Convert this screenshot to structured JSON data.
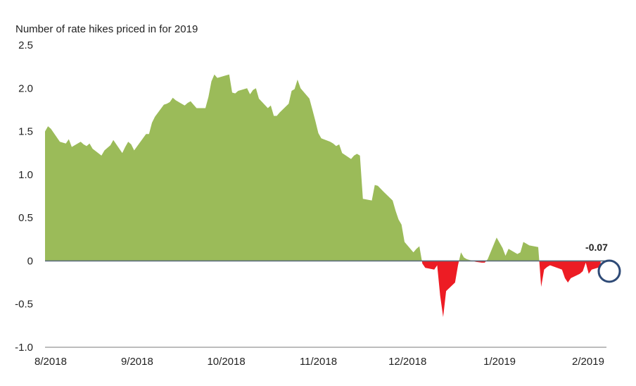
{
  "chart_data": {
    "type": "area",
    "title": "",
    "ylabel": "Number of rate hikes priced in for 2019",
    "xlabel": "",
    "ylim": [
      -1.0,
      2.5
    ],
    "y_ticks": [
      2.5,
      2.0,
      1.5,
      1.0,
      0.5,
      0,
      -0.5,
      -1.0
    ],
    "y_tick_labels": [
      "2.5",
      "2.0",
      "1.5",
      "1.0",
      "0.5",
      "0",
      "-0.5",
      "-1.0"
    ],
    "x_tick_labels": [
      "8/2018",
      "9/2018",
      "10/2018",
      "11/2018",
      "12/2018",
      "1/2019",
      "2/2019"
    ],
    "x_tick_dates": [
      "2018-08-01",
      "2018-09-01",
      "2018-10-01",
      "2018-11-01",
      "2018-12-01",
      "2019-01-01",
      "2019-02-01"
    ],
    "grid": false,
    "positive_color": "#9bbb59",
    "negative_color": "#ed1c24",
    "zero_line_color": "#5a6b7b",
    "axis_color": "#7a7a7a",
    "annotation": {
      "label": "-0.07",
      "value": -0.07,
      "date": "2019-02-04",
      "circle_color": "#2e4a76"
    },
    "series": [
      {
        "x": [
          "2018-08-01",
          "2018-08-02",
          "2018-08-03",
          "2018-08-06",
          "2018-08-07",
          "2018-08-08",
          "2018-08-09",
          "2018-08-10",
          "2018-08-13",
          "2018-08-14",
          "2018-08-15",
          "2018-08-16",
          "2018-08-17",
          "2018-08-20",
          "2018-08-21",
          "2018-08-22",
          "2018-08-23",
          "2018-08-24",
          "2018-08-27",
          "2018-08-28",
          "2018-08-29",
          "2018-08-30",
          "2018-08-31",
          "2018-09-04",
          "2018-09-05",
          "2018-09-06",
          "2018-09-07",
          "2018-09-10",
          "2018-09-11",
          "2018-09-12",
          "2018-09-13",
          "2018-09-14",
          "2018-09-17",
          "2018-09-18",
          "2018-09-19",
          "2018-09-20",
          "2018-09-21",
          "2018-09-24",
          "2018-09-25",
          "2018-09-26",
          "2018-09-27",
          "2018-09-28",
          "2018-10-01",
          "2018-10-02",
          "2018-10-03",
          "2018-10-04",
          "2018-10-05",
          "2018-10-08",
          "2018-10-09",
          "2018-10-10",
          "2018-10-11",
          "2018-10-12",
          "2018-10-15",
          "2018-10-16",
          "2018-10-17",
          "2018-10-18",
          "2018-10-19",
          "2018-10-22",
          "2018-10-23",
          "2018-10-24",
          "2018-10-25",
          "2018-10-26",
          "2018-10-29",
          "2018-10-30",
          "2018-10-31",
          "2018-11-01",
          "2018-11-02",
          "2018-11-05",
          "2018-11-06",
          "2018-11-07",
          "2018-11-08",
          "2018-11-09",
          "2018-11-12",
          "2018-11-13",
          "2018-11-14",
          "2018-11-15",
          "2018-11-16",
          "2018-11-19",
          "2018-11-20",
          "2018-11-21",
          "2018-11-23",
          "2018-11-26",
          "2018-11-27",
          "2018-11-28",
          "2018-11-29",
          "2018-11-30",
          "2018-12-03",
          "2018-12-04",
          "2018-12-05",
          "2018-12-06",
          "2018-12-07",
          "2018-12-10",
          "2018-12-11",
          "2018-12-12",
          "2018-12-13",
          "2018-12-14",
          "2018-12-17",
          "2018-12-18",
          "2018-12-19",
          "2018-12-20",
          "2018-12-21",
          "2018-12-24",
          "2018-12-26",
          "2018-12-27",
          "2018-12-28",
          "2018-12-31",
          "2019-01-02",
          "2019-01-03",
          "2019-01-04",
          "2019-01-07",
          "2019-01-08",
          "2019-01-09",
          "2019-01-10",
          "2019-01-11",
          "2019-01-14",
          "2019-01-15",
          "2019-01-16",
          "2019-01-17",
          "2019-01-18",
          "2019-01-22",
          "2019-01-23",
          "2019-01-24",
          "2019-01-25",
          "2019-01-28",
          "2019-01-29",
          "2019-01-30",
          "2019-01-31",
          "2019-02-01",
          "2019-02-04"
        ],
        "values": [
          1.5,
          1.56,
          1.53,
          1.38,
          1.37,
          1.36,
          1.41,
          1.32,
          1.38,
          1.35,
          1.33,
          1.36,
          1.3,
          1.22,
          1.28,
          1.31,
          1.34,
          1.4,
          1.25,
          1.32,
          1.38,
          1.35,
          1.28,
          1.47,
          1.47,
          1.6,
          1.67,
          1.81,
          1.82,
          1.84,
          1.89,
          1.86,
          1.8,
          1.83,
          1.85,
          1.81,
          1.77,
          1.77,
          1.9,
          2.08,
          2.16,
          2.12,
          2.15,
          2.16,
          1.95,
          1.94,
          1.97,
          2.0,
          1.93,
          1.98,
          2.0,
          1.88,
          1.77,
          1.8,
          1.68,
          1.68,
          1.72,
          1.82,
          1.97,
          1.99,
          2.1,
          2.0,
          1.88,
          1.75,
          1.62,
          1.48,
          1.42,
          1.38,
          1.36,
          1.33,
          1.35,
          1.25,
          1.18,
          1.22,
          1.24,
          1.22,
          0.72,
          0.7,
          0.88,
          0.87,
          0.8,
          0.7,
          0.58,
          0.48,
          0.42,
          0.22,
          0.1,
          0.14,
          0.17,
          -0.03,
          -0.08,
          -0.1,
          -0.05,
          -0.4,
          -0.65,
          -0.35,
          -0.25,
          -0.05,
          0.1,
          0.04,
          0.02,
          -0.01,
          -0.02,
          -0.02,
          0.02,
          0.27,
          0.15,
          0.06,
          0.14,
          0.08,
          0.1,
          0.22,
          0.2,
          0.18,
          0.16,
          -0.3,
          -0.1,
          -0.07,
          -0.05,
          -0.1,
          -0.2,
          -0.25,
          -0.2,
          -0.15,
          -0.12,
          -0.02,
          -0.15,
          -0.1,
          -0.07
        ]
      }
    ]
  }
}
